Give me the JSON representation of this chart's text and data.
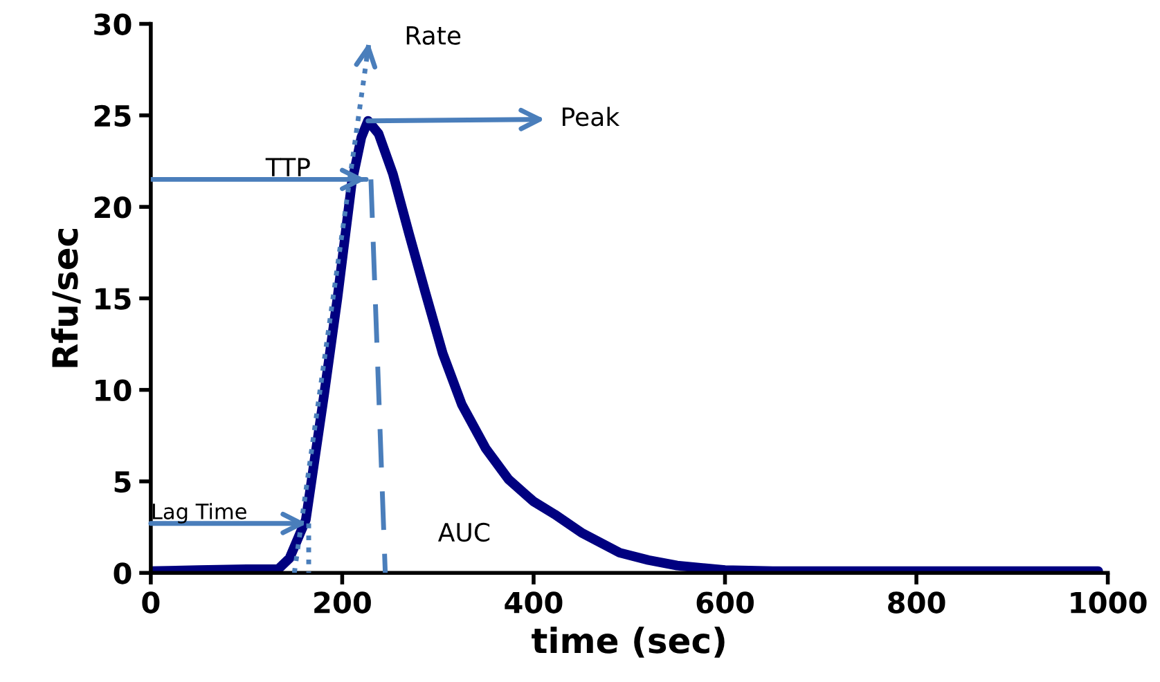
{
  "chart_data": {
    "type": "line",
    "xlabel": "time (sec)",
    "ylabel": "Rfu/sec",
    "xlim": [
      0,
      1000
    ],
    "ylim": [
      0,
      30
    ],
    "xticks": [
      0,
      200,
      400,
      600,
      800,
      1000
    ],
    "yticks": [
      0,
      5,
      10,
      15,
      20,
      25,
      30
    ],
    "grid": false,
    "marker": "none",
    "line_style": "solid",
    "series": [
      {
        "color": "#000080",
        "x": [
          0,
          50,
          100,
          133,
          145,
          162,
          181,
          195,
          210,
          220,
          227,
          238,
          253,
          270,
          287,
          305,
          325,
          350,
          374,
          400,
          422,
          450,
          490,
          520,
          550,
          600,
          650,
          700,
          800,
          900,
          990
        ],
        "values": [
          0.1,
          0.15,
          0.2,
          0.2,
          0.8,
          2.9,
          9.7,
          15.0,
          21.3,
          23.8,
          24.7,
          24.0,
          21.8,
          18.5,
          15.3,
          12.0,
          9.2,
          6.8,
          5.1,
          3.9,
          3.2,
          2.2,
          1.1,
          0.7,
          0.4,
          0.15,
          0.1,
          0.1,
          0.1,
          0.1,
          0.1
        ]
      },
      {
        "color": "#4a7ebb",
        "line_style": "dotted",
        "x": [
          150,
          228
        ],
        "values": [
          0,
          29
        ]
      },
      {
        "color": "#4a7ebb",
        "x": [
          0,
          225
        ],
        "values": [
          21.5,
          21.5
        ]
      },
      {
        "color": "#4a7ebb",
        "line_style": "dashed",
        "x": [
          230,
          245
        ],
        "values": [
          21.5,
          0
        ]
      },
      {
        "color": "#4a7ebb",
        "line_style": "dotted",
        "x": [
          165,
          165
        ],
        "values": [
          2.7,
          0
        ]
      }
    ],
    "annotations": [
      "Rate",
      {
        "text": "Peak",
        "x": 227,
        "y": 24.7
      },
      "TTP",
      {
        "text": "Lag Time",
        "x": 163,
        "y": 2.7
      },
      "AUC"
    ]
  }
}
